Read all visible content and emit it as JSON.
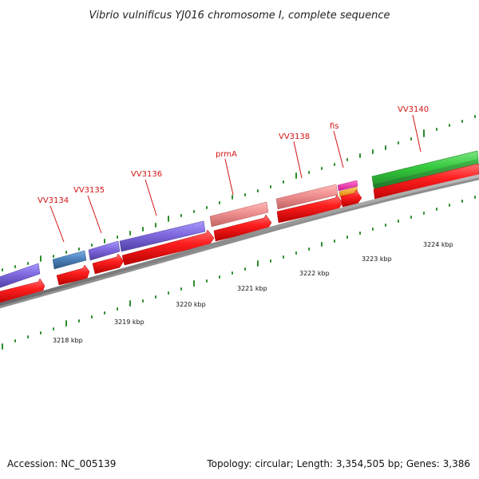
{
  "title": "Vibrio vulnificus YJ016 chromosome I, complete sequence",
  "gene_labels": [
    {
      "name": "VV3134"
    },
    {
      "name": "VV3135"
    },
    {
      "name": "VV3136"
    },
    {
      "name": "prmA"
    },
    {
      "name": "VV3138"
    },
    {
      "name": "fis"
    },
    {
      "name": "VV3140"
    }
  ],
  "scale_labels": [
    {
      "text": "3218 kbp"
    },
    {
      "text": "3219 kbp"
    },
    {
      "text": "3220 kbp"
    },
    {
      "text": "3221 kbp"
    },
    {
      "text": "3222 kbp"
    },
    {
      "text": "3223 kbp"
    },
    {
      "text": "3224 kbp"
    }
  ],
  "footer": {
    "accession": "Accession: NC_005139",
    "summary": "Topology: circular; Length: 3,354,505 bp; Genes: 3,386"
  },
  "colors": {
    "label_red": "#d21414",
    "cds_red": "#ff1f1f",
    "purple": "#7e68dd",
    "steel_blue": "#4d82bd",
    "salmon": "#ef8f8f",
    "pink": "#ff2bb2",
    "orange": "#ffa31f",
    "green": "#34c93d",
    "dark_green": "#238c2a",
    "backbone_gray": "#8d8d8d",
    "tick_green": "#2d8d2d"
  }
}
